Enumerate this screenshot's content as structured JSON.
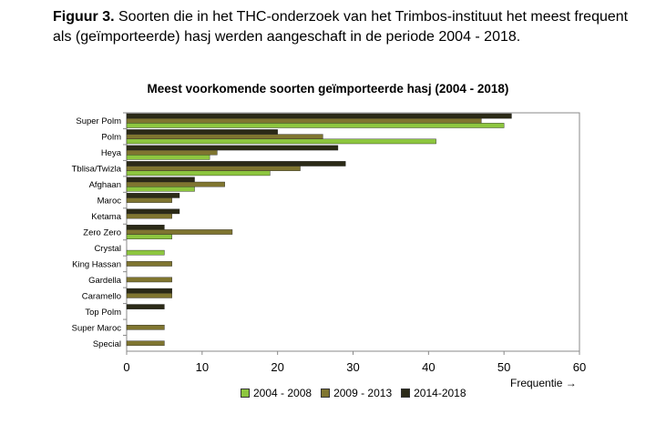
{
  "caption": {
    "label": "Figuur 3.",
    "text": " Soorten die in het THC-onderzoek van het Trimbos-instituut het meest frequent als (geïmporteerde) hasj werden aangeschaft in de periode 2004 - 2018."
  },
  "chart_data": {
    "type": "bar",
    "orientation": "horizontal",
    "title": "Meest voorkomende soorten geïmporteerde hasj (2004 - 2018)",
    "xlabel": "Frequentie →",
    "ylabel": "",
    "xlim": [
      0,
      60
    ],
    "xticks": [
      0,
      10,
      20,
      30,
      40,
      50,
      60
    ],
    "grid": false,
    "legend_position": "bottom",
    "categories": [
      "Super Polm",
      "Polm",
      "Heya",
      "Tblisa/Twizla",
      "Afghaan",
      "Maroc",
      "Ketama",
      "Zero Zero",
      "Crystal",
      "King Hassan",
      "Gardella",
      "Caramello",
      "Top Polm",
      "Super Maroc",
      "Special"
    ],
    "series": [
      {
        "name": "2004 - 2008",
        "color": "#8dc63f",
        "values": [
          50,
          41,
          11,
          19,
          9,
          0,
          0,
          6,
          5,
          0,
          0,
          0,
          0,
          0,
          0
        ]
      },
      {
        "name": "2009 - 2013",
        "color": "#7f7530",
        "values": [
          47,
          26,
          12,
          23,
          13,
          6,
          6,
          14,
          0,
          6,
          6,
          6,
          0,
          5,
          5
        ]
      },
      {
        "name": "2014-2018",
        "color": "#2b2a17",
        "values": [
          51,
          20,
          28,
          29,
          9,
          7,
          7,
          5,
          0,
          0,
          0,
          6,
          5,
          0,
          0
        ]
      }
    ]
  }
}
